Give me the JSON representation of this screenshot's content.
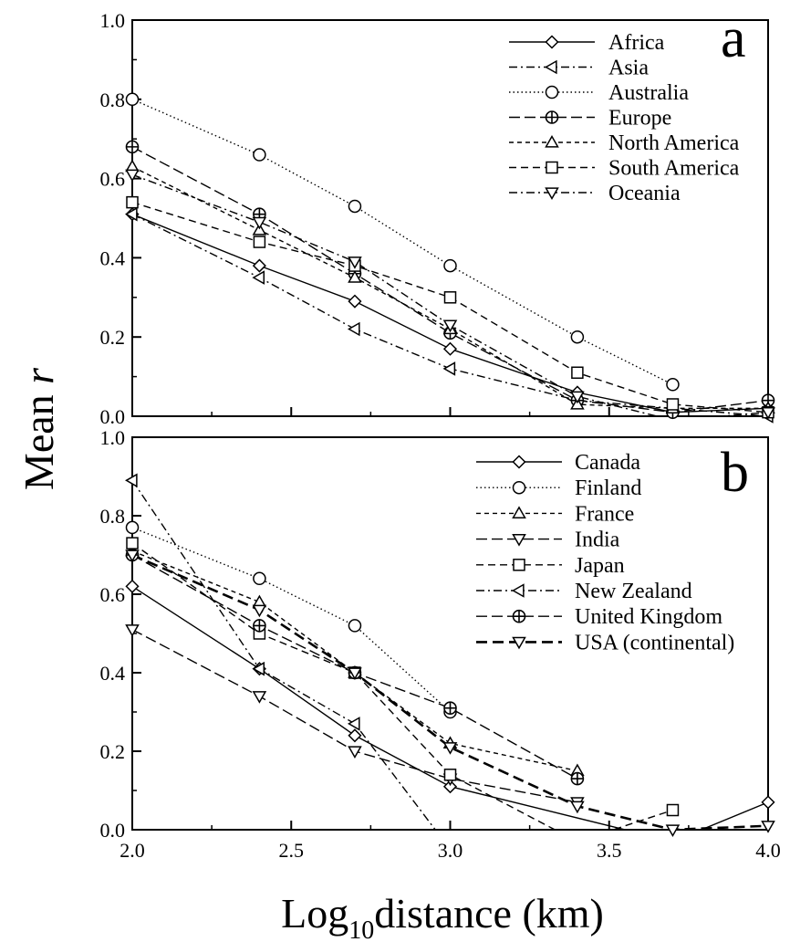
{
  "figure": {
    "ylabel_main": "Mean ",
    "ylabel_italic": "r",
    "xlabel_prefix": "Log",
    "xlabel_sub": "10",
    "xlabel_suffix": "distance (km)"
  },
  "chart_data": [
    {
      "type": "line",
      "panel": "a",
      "xlim": [
        2.0,
        4.0
      ],
      "ylim": [
        0.0,
        1.0
      ],
      "x_ticks": [
        "2.0",
        "2.5",
        "3.0",
        "3.5",
        "4.0"
      ],
      "y_ticks": [
        "0.0",
        "0.2",
        "0.4",
        "0.6",
        "0.8",
        "1.0"
      ],
      "legend_position": "top-right",
      "series": [
        {
          "name": "Africa",
          "marker": "diamond",
          "dash": "solid",
          "x": [
            2.0,
            2.4,
            2.7,
            3.0,
            3.4,
            3.7,
            4.0
          ],
          "y": [
            0.51,
            0.38,
            0.29,
            0.17,
            0.06,
            0.01,
            0.02
          ]
        },
        {
          "name": "Asia",
          "marker": "triangle-left",
          "dash": "dashdot",
          "x": [
            2.0,
            2.4,
            2.7,
            3.0,
            3.4,
            3.7,
            4.0
          ],
          "y": [
            0.51,
            0.35,
            0.22,
            0.12,
            0.04,
            0.02,
            0.0
          ]
        },
        {
          "name": "Australia",
          "marker": "circle",
          "dash": "dotted",
          "x": [
            2.0,
            2.4,
            2.7,
            3.0,
            3.4,
            3.7
          ],
          "y": [
            0.8,
            0.66,
            0.53,
            0.38,
            0.2,
            0.08
          ]
        },
        {
          "name": "Europe",
          "marker": "circle-plus",
          "dash": "longdash",
          "x": [
            2.0,
            2.4,
            2.7,
            3.0,
            3.4,
            3.7,
            4.0
          ],
          "y": [
            0.68,
            0.51,
            0.36,
            0.21,
            0.04,
            0.01,
            0.04
          ]
        },
        {
          "name": "North America",
          "marker": "triangle-up",
          "dash": "shortdash",
          "x": [
            2.0,
            2.4,
            2.7,
            3.0,
            3.4,
            3.7,
            4.0
          ],
          "y": [
            0.63,
            0.47,
            0.35,
            0.22,
            0.03,
            0.02,
            0.02
          ]
        },
        {
          "name": "South America",
          "marker": "square",
          "dash": "dash",
          "x": [
            2.0,
            2.4,
            2.7,
            3.0,
            3.4,
            3.7,
            4.0
          ],
          "y": [
            0.54,
            0.44,
            0.38,
            0.3,
            0.11,
            0.03,
            0.01
          ]
        },
        {
          "name": "Oceania",
          "marker": "triangle-down",
          "dash": "dashdot",
          "x": [
            2.0,
            2.4,
            2.7,
            3.0,
            3.4,
            3.7,
            4.0
          ],
          "y": [
            0.61,
            0.49,
            0.39,
            0.23,
            0.05,
            -0.01,
            0.01
          ]
        }
      ]
    },
    {
      "type": "line",
      "panel": "b",
      "xlim": [
        2.0,
        4.0
      ],
      "ylim": [
        0.0,
        1.0
      ],
      "x_ticks": [
        "2.0",
        "2.5",
        "3.0",
        "3.5",
        "4.0"
      ],
      "y_ticks": [
        "0.0",
        "0.2",
        "0.4",
        "0.6",
        "0.8",
        "1.0"
      ],
      "legend_position": "top-right",
      "series": [
        {
          "name": "Canada",
          "marker": "diamond",
          "dash": "solid",
          "x": [
            2.0,
            2.4,
            2.7,
            3.0,
            3.7,
            4.0
          ],
          "y": [
            0.62,
            0.41,
            0.24,
            0.11,
            -0.03,
            0.07
          ]
        },
        {
          "name": "Finland",
          "marker": "circle",
          "dash": "dotted",
          "x": [
            2.0,
            2.4,
            2.7,
            3.0
          ],
          "y": [
            0.77,
            0.64,
            0.52,
            0.3
          ]
        },
        {
          "name": "France",
          "marker": "triangle-up",
          "dash": "shortdash",
          "x": [
            2.0,
            2.4,
            2.7,
            3.0,
            3.4
          ],
          "y": [
            0.71,
            0.58,
            0.4,
            0.22,
            0.15
          ]
        },
        {
          "name": "India",
          "marker": "triangle-down",
          "dash": "longdash",
          "x": [
            2.0,
            2.4,
            2.7,
            3.0,
            3.4
          ],
          "y": [
            0.51,
            0.34,
            0.2,
            0.13,
            0.07
          ]
        },
        {
          "name": "Japan",
          "marker": "square",
          "dash": "dash",
          "x": [
            2.0,
            2.4,
            2.7,
            3.0,
            3.4,
            3.7
          ],
          "y": [
            0.73,
            0.5,
            0.4,
            0.14,
            -0.03,
            0.05
          ]
        },
        {
          "name": "New Zealand",
          "marker": "triangle-left",
          "dash": "dashdot",
          "x": [
            2.0,
            2.4,
            2.7,
            3.0
          ],
          "y": [
            0.89,
            0.41,
            0.27,
            -0.05
          ]
        },
        {
          "name": "United Kingdom",
          "marker": "circle-plus",
          "dash": "longdash",
          "x": [
            2.0,
            2.4,
            2.7,
            3.0,
            3.4
          ],
          "y": [
            0.7,
            0.52,
            0.4,
            0.31,
            0.13
          ]
        },
        {
          "name": "USA (continental)",
          "marker": "triangle-down",
          "dash": "bolddash",
          "x": [
            2.0,
            2.4,
            2.7,
            3.0,
            3.4,
            3.7,
            4.0
          ],
          "y": [
            0.7,
            0.56,
            0.4,
            0.21,
            0.06,
            0.0,
            0.01
          ]
        }
      ]
    }
  ]
}
